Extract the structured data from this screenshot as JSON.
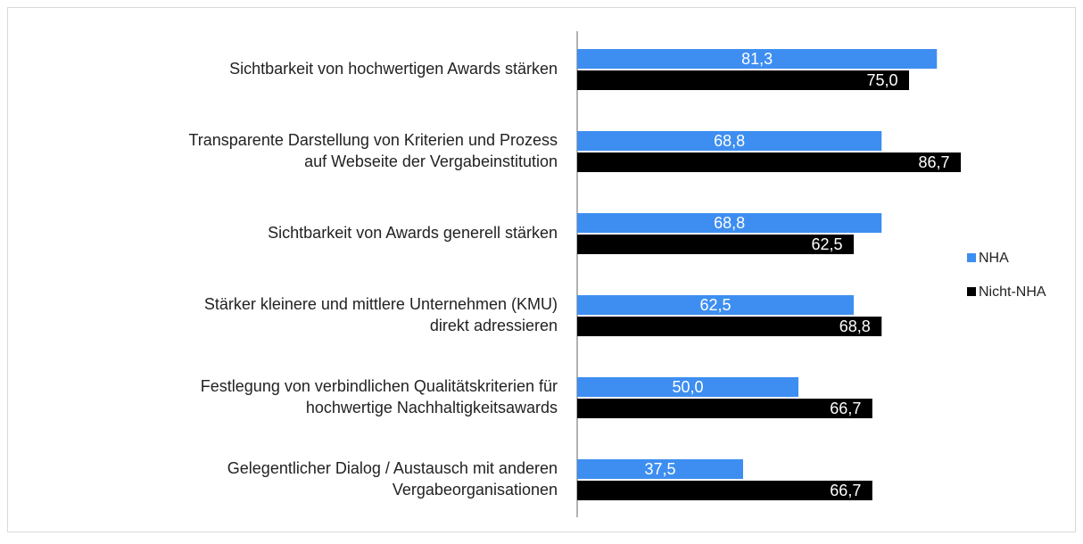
{
  "chart_data": {
    "type": "hbar",
    "categories": [
      "Sichtbarkeit von hochwertigen Awards stärken",
      "Transparente Darstellung von Kriterien und Prozess\nauf Webseite der Vergabeinstitution",
      "Sichtbarkeit von Awards generell stärken",
      "Stärker kleinere und mittlere Unternehmen (KMU)\ndirekt adressieren",
      "Festlegung von verbindlichen Qualitätskriterien für\nhochwertige Nachhaltigkeitsawards",
      "Gelegentlicher Dialog / Austausch mit anderen\nVergabeorganisationen"
    ],
    "series": [
      {
        "name": "NHA",
        "color": "#3d8ef0",
        "values": [
          81.3,
          68.8,
          68.8,
          62.5,
          50.0,
          37.5
        ],
        "value_labels": [
          "81,3",
          "68,8",
          "68,8",
          "62,5",
          "50,0",
          "37,5"
        ]
      },
      {
        "name": "Nicht-NHA",
        "color": "#000000",
        "values": [
          75.0,
          86.7,
          62.5,
          68.8,
          66.7,
          66.7
        ],
        "value_labels": [
          "75,0",
          "86,7",
          "62,5",
          "68,8",
          "66,7",
          "66,7"
        ]
      }
    ],
    "xlim": [
      0,
      100
    ],
    "legend": "right"
  }
}
